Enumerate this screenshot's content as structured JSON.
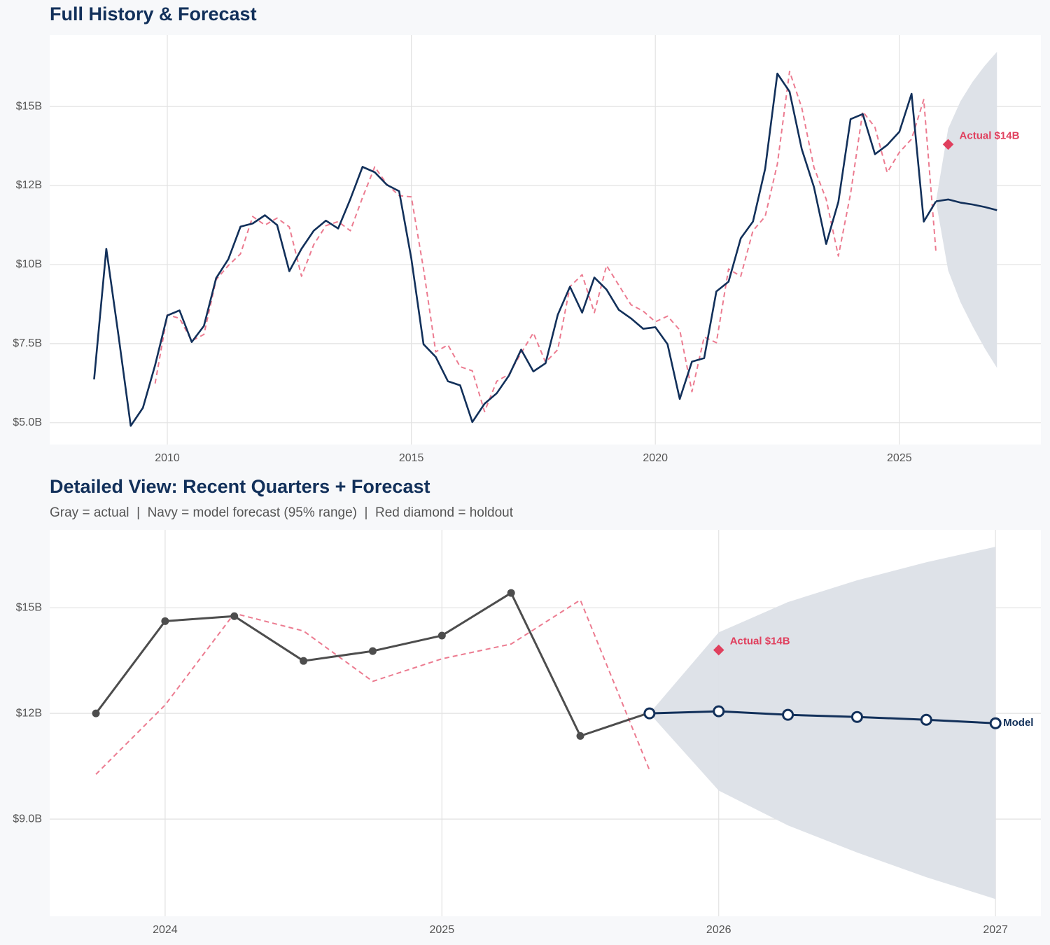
{
  "chart_data": [
    {
      "type": "line",
      "title": "Full History & Forecast",
      "xlim": [
        2007.59,
        2027.9
      ],
      "ylim": [
        4.31,
        17.26
      ],
      "xticks": [
        2010,
        2015,
        2020,
        2025
      ],
      "yticks": [
        {
          "value": 5,
          "label": "$5.0B"
        },
        {
          "value": 7.5,
          "label": "$7.5B"
        },
        {
          "value": 10,
          "label": "$10B"
        },
        {
          "value": 12.5,
          "label": "$12B"
        },
        {
          "value": 15,
          "label": "$15B"
        }
      ],
      "grid": true,
      "series": [
        {
          "color": "#12305a",
          "x": [
            2008.5,
            2008.75,
            2009,
            2009.25,
            2009.5,
            2009.75,
            2010,
            2010.25,
            2010.5,
            2010.75,
            2011,
            2011.25,
            2011.5,
            2011.75,
            2012,
            2012.25,
            2012.5,
            2012.75,
            2013,
            2013.25,
            2013.5,
            2013.75,
            2014,
            2014.25,
            2014.5,
            2014.75,
            2015,
            2015.25,
            2015.5,
            2015.75,
            2016,
            2016.25,
            2016.5,
            2016.75,
            2017,
            2017.25,
            2017.5,
            2017.75,
            2018,
            2018.25,
            2018.5,
            2018.75,
            2019,
            2019.25,
            2019.5,
            2019.75,
            2020,
            2020.25,
            2020.5,
            2020.75,
            2021,
            2021.25,
            2021.5,
            2021.75,
            2022,
            2022.25,
            2022.5,
            2022.75,
            2023,
            2023.25,
            2023.5,
            2023.75,
            2024,
            2024.25,
            2024.5,
            2024.75,
            2025,
            2025.25,
            2025.5,
            2025.75
          ],
          "values": [
            6.37,
            10.5,
            7.75,
            4.9,
            5.47,
            6.82,
            8.39,
            8.55,
            7.55,
            8.06,
            9.57,
            10.17,
            11.2,
            11.3,
            11.56,
            11.25,
            9.79,
            10.5,
            11.07,
            11.39,
            11.14,
            12.07,
            13.09,
            12.92,
            12.52,
            12.32,
            10.19,
            7.48,
            7.08,
            6.31,
            6.18,
            5.02,
            5.6,
            5.93,
            6.49,
            7.31,
            6.62,
            6.88,
            8.41,
            9.3,
            8.48,
            9.59,
            9.21,
            8.57,
            8.3,
            7.97,
            8.02,
            7.48,
            5.75,
            6.93,
            7.04,
            9.15,
            9.46,
            10.83,
            11.36,
            13.03,
            16.04,
            15.47,
            13.65,
            12.45,
            10.65,
            11.98,
            14.6,
            14.76,
            13.49,
            13.78,
            14.2,
            15.4,
            11.36,
            12.0
          ]
        },
        {
          "color": "#ec7b90",
          "dash": true,
          "x": [
            2009.75,
            2010,
            2010.25,
            2010.5,
            2010.75,
            2011,
            2011.25,
            2011.5,
            2011.75,
            2012,
            2012.25,
            2012.5,
            2012.75,
            2013,
            2013.25,
            2013.5,
            2013.75,
            2014,
            2014.25,
            2014.5,
            2014.75,
            2015,
            2015.25,
            2015.5,
            2015.75,
            2016,
            2016.25,
            2016.5,
            2016.75,
            2017,
            2017.25,
            2017.5,
            2017.75,
            2018,
            2018.25,
            2018.5,
            2018.75,
            2019,
            2019.25,
            2019.5,
            2019.75,
            2020,
            2020.25,
            2020.5,
            2020.75,
            2021,
            2021.25,
            2021.5,
            2021.75,
            2022,
            2022.25,
            2022.5,
            2022.75,
            2023,
            2023.25,
            2023.5,
            2023.75,
            2024,
            2024.25,
            2024.5,
            2024.75,
            2025,
            2025.25,
            2025.5,
            2025.75
          ],
          "values": [
            6.24,
            8.41,
            8.3,
            7.59,
            7.79,
            9.52,
            9.97,
            10.34,
            11.52,
            11.25,
            11.47,
            11.19,
            9.63,
            10.63,
            11.23,
            11.36,
            11.07,
            12.12,
            13.09,
            12.54,
            12.18,
            12.14,
            9.86,
            7.24,
            7.46,
            6.77,
            6.64,
            5.35,
            6.31,
            6.53,
            7.2,
            7.84,
            6.91,
            7.31,
            9.3,
            9.68,
            8.48,
            9.97,
            9.35,
            8.73,
            8.53,
            8.19,
            8.37,
            7.93,
            5.98,
            7.71,
            7.53,
            9.86,
            9.63,
            11.07,
            11.52,
            13.18,
            16.11,
            14.96,
            13.07,
            12.07,
            10.27,
            12.24,
            14.84,
            14.34,
            12.91,
            13.55,
            13.97,
            15.22,
            10.39
          ]
        },
        {
          "color": "#12305a",
          "band_color": "#dce0e7",
          "x": [
            2025.75,
            2026,
            2026.25,
            2026.5,
            2026.75,
            2027
          ],
          "values": [
            12.0,
            12.06,
            11.96,
            11.9,
            11.82,
            11.72
          ],
          "lower": [
            12.0,
            9.81,
            8.82,
            8.05,
            7.35,
            6.73
          ],
          "upper": [
            12.0,
            14.3,
            15.16,
            15.78,
            16.29,
            16.73
          ]
        }
      ],
      "annotation": {
        "text": "Actual $14B",
        "x": 2026,
        "y": 13.8,
        "color": "#e0405e"
      }
    },
    {
      "type": "line",
      "title": "Detailed View: Recent Quarters + Forecast",
      "subtitle": "Gray = actual  |  Navy = model forecast (95% range)  |  Red diamond = holdout",
      "xlim": [
        2023.583,
        2027.164
      ],
      "ylim": [
        6.24,
        17.21
      ],
      "xticks": [
        2024,
        2025,
        2026,
        2027
      ],
      "yticks": [
        {
          "value": 9,
          "label": "$9.0B"
        },
        {
          "value": 12,
          "label": "$12B"
        },
        {
          "value": 15,
          "label": "$15B"
        }
      ],
      "grid": true,
      "series": [
        {
          "color": "#4d4d4d",
          "markers": "filled",
          "x": [
            2023.75,
            2024,
            2024.25,
            2024.5,
            2024.75,
            2025,
            2025.25,
            2025.5,
            2025.75
          ],
          "values": [
            12.0,
            14.62,
            14.76,
            13.49,
            13.77,
            14.21,
            15.42,
            11.36,
            12.02
          ]
        },
        {
          "color": "#ec7b90",
          "dash": true,
          "x": [
            2023.75,
            2024,
            2024.25,
            2024.5,
            2024.75,
            2025,
            2025.25,
            2025.5,
            2025.75
          ],
          "values": [
            10.27,
            12.24,
            14.84,
            14.34,
            12.91,
            13.55,
            13.97,
            15.22,
            10.39
          ]
        },
        {
          "name": "Model",
          "color": "#12305a",
          "band_color": "#dce0e7",
          "markers": "open",
          "x": [
            2025.75,
            2026,
            2026.25,
            2026.5,
            2026.75,
            2027
          ],
          "values": [
            12.0,
            12.06,
            11.96,
            11.9,
            11.82,
            11.72
          ],
          "lower": [
            12.0,
            9.81,
            8.82,
            8.05,
            7.35,
            6.73
          ],
          "upper": [
            12.0,
            14.3,
            15.16,
            15.78,
            16.29,
            16.73
          ]
        }
      ],
      "annotation": {
        "text": "Actual $14B",
        "x": 2026,
        "y": 13.8,
        "color": "#e0405e"
      }
    }
  ]
}
